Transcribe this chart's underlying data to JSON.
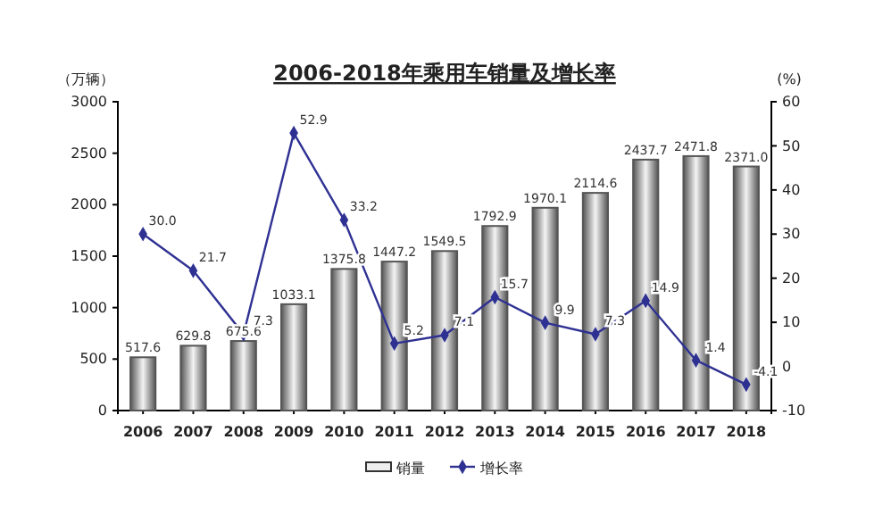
{
  "chart_data": {
    "type": "bar",
    "title": "2006-2018年乘用车销量及增长率",
    "ylabel": "（万辆）",
    "y2label": "(%)",
    "categories": [
      "2006",
      "2007",
      "2008",
      "2009",
      "2010",
      "2011",
      "2012",
      "2013",
      "2014",
      "2015",
      "2016",
      "2017",
      "2018"
    ],
    "series": [
      {
        "name": "销量",
        "color": "#555555",
        "values": [
          517.6,
          629.8,
          675.6,
          1033.1,
          1375.8,
          1447.2,
          1549.5,
          1792.9,
          1970.1,
          2114.6,
          2437.7,
          2471.8,
          2371
        ],
        "value_labels": [
          "517.6",
          "629.8",
          "675.6",
          "1033.1",
          "1375.8",
          "1447.2",
          "1549.5",
          "1792.9",
          "1970.1",
          "2114.6",
          "2437.7",
          "2471.8",
          "2371.0"
        ]
      },
      {
        "name": "增长率",
        "type": "line",
        "axis": "y2",
        "color": "#2e3192",
        "values": [
          30,
          21.7,
          7.3,
          52.9,
          33.2,
          5.2,
          7.1,
          15.7,
          9.9,
          7.3,
          14.9,
          1.4,
          -4.1
        ],
        "value_labels": [
          "30.0",
          "21.7",
          "7.3",
          "52.9",
          "33.2",
          "5.2",
          "7.1",
          "15.7",
          "9.9",
          "7.3",
          "14.9",
          "1.4",
          "-4.1"
        ]
      }
    ],
    "ylim": [
      0,
      3000
    ],
    "yticks": [
      0,
      500,
      1000,
      1500,
      2000,
      2500,
      3000
    ],
    "y2lim": [
      -10,
      60
    ],
    "y2ticks": [
      -10,
      0,
      10,
      20,
      30,
      40,
      50,
      60
    ],
    "marker": "diamond",
    "legend": "bottom",
    "grid": false
  }
}
